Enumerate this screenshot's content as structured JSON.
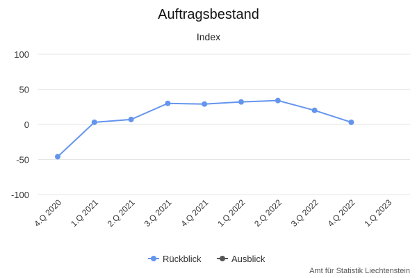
{
  "chart_data": {
    "type": "line",
    "title": "Auftragsbestand",
    "subtitle": "Index",
    "categories": [
      "4.Q 2020",
      "1.Q 2021",
      "2.Q 2021",
      "3.Q 2021",
      "4.Q 2021",
      "1.Q 2022",
      "2.Q 2022",
      "3.Q 2022",
      "4.Q 2022",
      "1.Q 2023"
    ],
    "series": [
      {
        "name": "Rückblick",
        "color": "#6495ed",
        "values": [
          -46,
          3,
          7,
          30,
          29,
          32,
          34,
          20,
          3,
          null
        ]
      },
      {
        "name": "Ausblick",
        "color": "#555555",
        "values": [
          null,
          null,
          null,
          null,
          null,
          null,
          null,
          null,
          null,
          null
        ]
      }
    ],
    "ylim": [
      -100,
      100
    ],
    "yticks": [
      100,
      50,
      0,
      -50,
      -100
    ],
    "xlabel": "",
    "ylabel": "",
    "grid": true,
    "legend_position": "bottom-center"
  },
  "credit": "Amt für Statistik Liechtenstein"
}
